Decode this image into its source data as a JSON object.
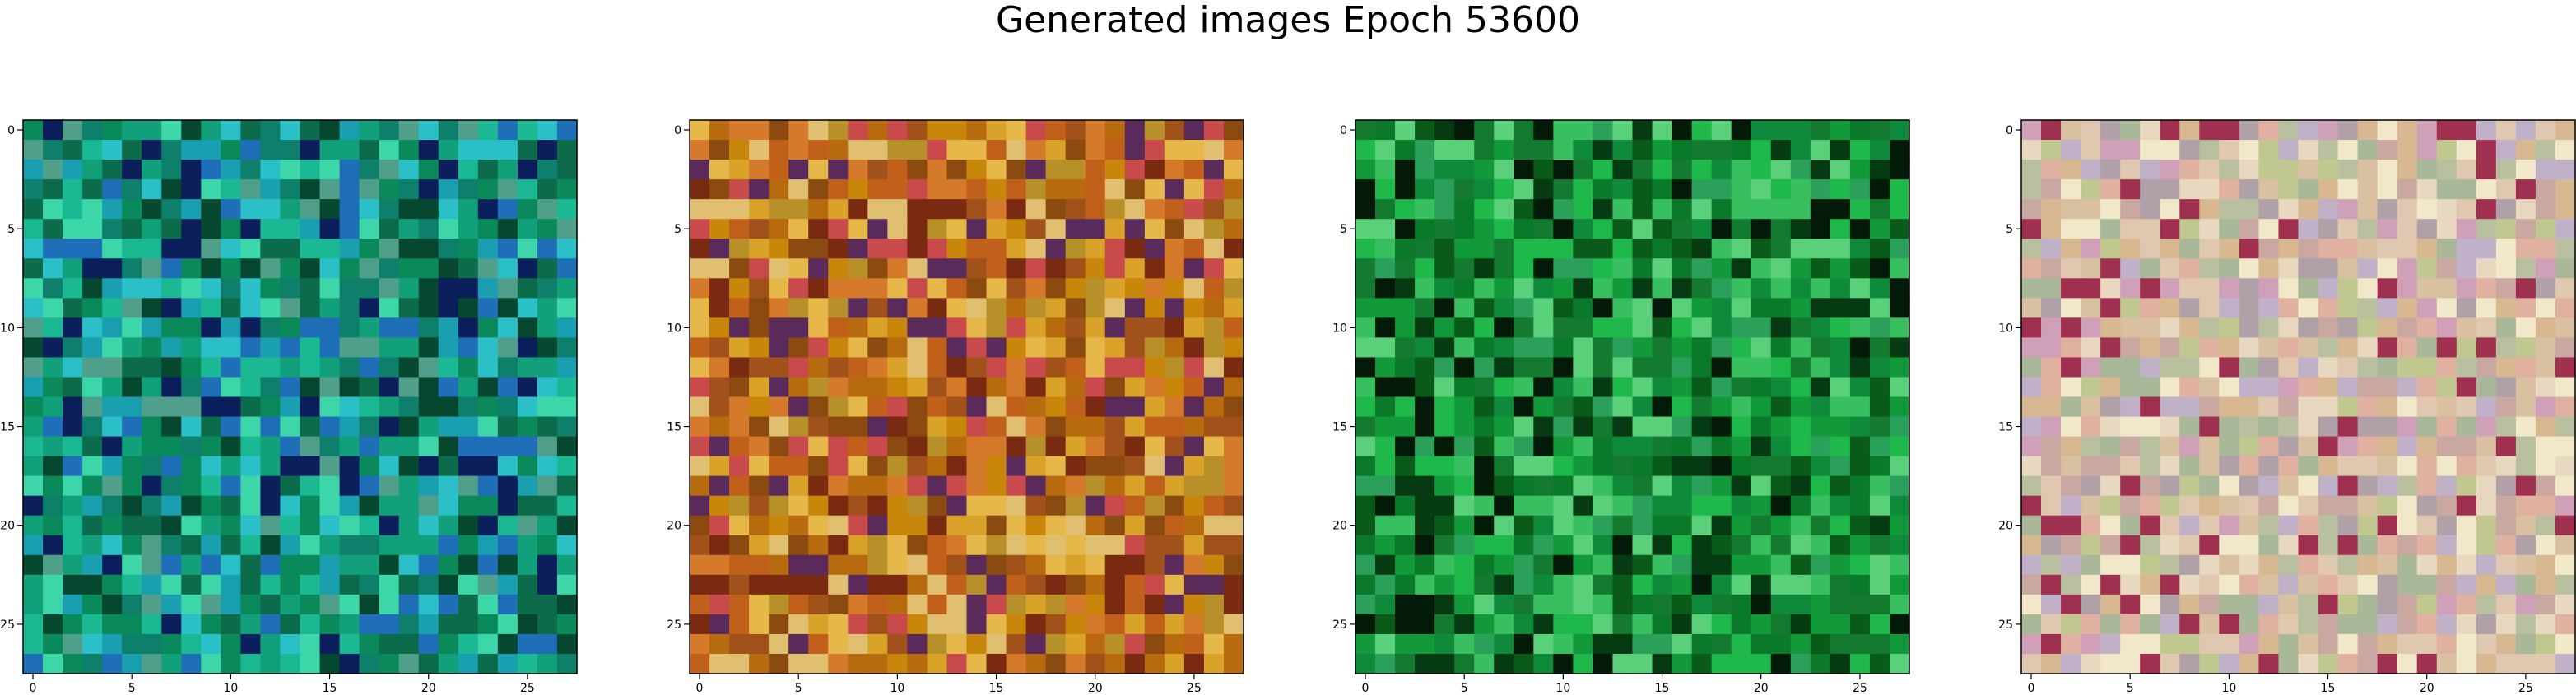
{
  "figure": {
    "title": "Generated images Epoch 53600"
  },
  "chart_data": [
    {
      "type": "heatmap",
      "image_size": 28,
      "xticks": [
        0,
        5,
        10,
        15,
        20,
        25
      ],
      "yticks": [
        0,
        5,
        10,
        15,
        20,
        25
      ],
      "xlim": [
        -0.5,
        27.5
      ],
      "ylim": [
        27.5,
        -0.5
      ],
      "palette": [
        "#0a8a5a",
        "#12a07a",
        "#1bb894",
        "#0c6b4a",
        "#06472f",
        "#1a9fb0",
        "#2bc0c8",
        "#1f6fb8",
        "#0b1f5c",
        "#3dd6a8",
        "#4f9f8a",
        "#0d7f6a"
      ],
      "edge_color": "#1f4e79"
    },
    {
      "type": "heatmap",
      "image_size": 28,
      "xticks": [
        0,
        5,
        10,
        15,
        20,
        25
      ],
      "yticks": [
        0,
        5,
        10,
        15,
        20,
        25
      ],
      "xlim": [
        -0.5,
        27.5
      ],
      "ylim": [
        27.5,
        -0.5
      ],
      "palette": [
        "#c8860a",
        "#b86a0e",
        "#d9a32a",
        "#a0521a",
        "#e6b84a",
        "#8a4a10",
        "#c0601a",
        "#d47a2a",
        "#7a2a10",
        "#b8902a",
        "#e0c070",
        "#5a2a5a",
        "#c84a4a"
      ],
      "edge_color": "#7a4a10"
    },
    {
      "type": "heatmap",
      "image_size": 28,
      "xticks": [
        0,
        5,
        10,
        15,
        20,
        25
      ],
      "yticks": [
        0,
        5,
        10,
        15,
        20,
        25
      ],
      "xlim": [
        -0.5,
        27.5
      ],
      "ylim": [
        27.5,
        -0.5
      ],
      "palette": [
        "#0a7a2a",
        "#129a3a",
        "#0a5a1a",
        "#1fb84a",
        "#063a12",
        "#2aa05a",
        "#0f8a3a",
        "#38c060",
        "#041a08",
        "#147a30",
        "#5ad07a"
      ],
      "edge_color": "#1a4a1a"
    },
    {
      "type": "heatmap",
      "image_size": 28,
      "xticks": [
        0,
        5,
        10,
        15,
        20,
        25
      ],
      "yticks": [
        0,
        5,
        10,
        15,
        20,
        25
      ],
      "xlim": [
        -0.5,
        27.5
      ],
      "ylim": [
        27.5,
        -0.5
      ],
      "palette": [
        "#d8b890",
        "#c8a8a0",
        "#b8c0a0",
        "#e0c8b0",
        "#d0a0b8",
        "#a8b898",
        "#e8d8c0",
        "#c0b0c8",
        "#d8c0a0",
        "#b0a0a8",
        "#c0c890",
        "#e0b0a0",
        "#a03050",
        "#f0e8c8"
      ],
      "edge_color": "#8a6a4a"
    }
  ]
}
